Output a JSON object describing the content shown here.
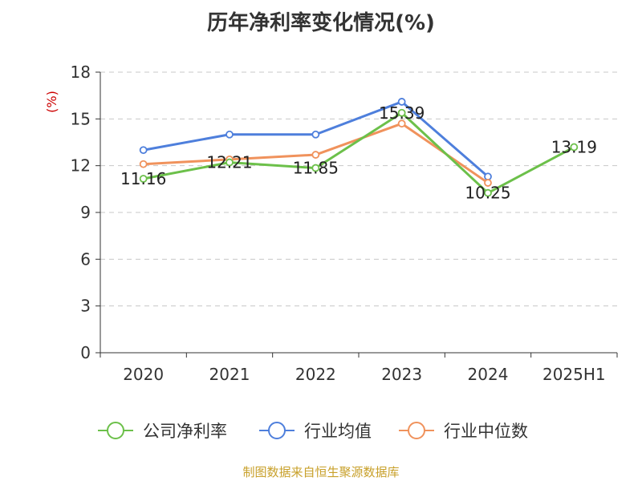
{
  "title": "历年净利率变化情况(%)",
  "source": "制图数据来自恒生聚源数据库",
  "colors": {
    "公司净利率": "#6cc04a",
    "行业均值": "#4e7fdc",
    "行业中位数": "#f0925c",
    "grid": "#c8c8c8",
    "axis": "#333333",
    "unit": "#cc0000",
    "source": "#c8a02a"
  },
  "chart_data": {
    "type": "line",
    "title": "历年净利率变化情况(%)",
    "xlabel": "",
    "ylabel": "(%)",
    "categories": [
      "2020",
      "2021",
      "2022",
      "2023",
      "2024",
      "2025H1"
    ],
    "ylim": [
      0,
      18
    ],
    "yticks": [
      0,
      3,
      6,
      9,
      12,
      15,
      18
    ],
    "grid": true,
    "legend_position": "bottom",
    "series": [
      {
        "name": "公司净利率",
        "values": [
          11.16,
          12.21,
          11.85,
          15.39,
          10.25,
          13.19
        ],
        "labels": [
          "11.16",
          "12.21",
          "11.85",
          "15.39",
          "10.25",
          "13.19"
        ]
      },
      {
        "name": "行业均值",
        "values": [
          13.0,
          14.0,
          14.0,
          16.1,
          11.3,
          null
        ]
      },
      {
        "name": "行业中位数",
        "values": [
          12.1,
          12.4,
          12.7,
          14.7,
          10.9,
          null
        ]
      }
    ]
  }
}
